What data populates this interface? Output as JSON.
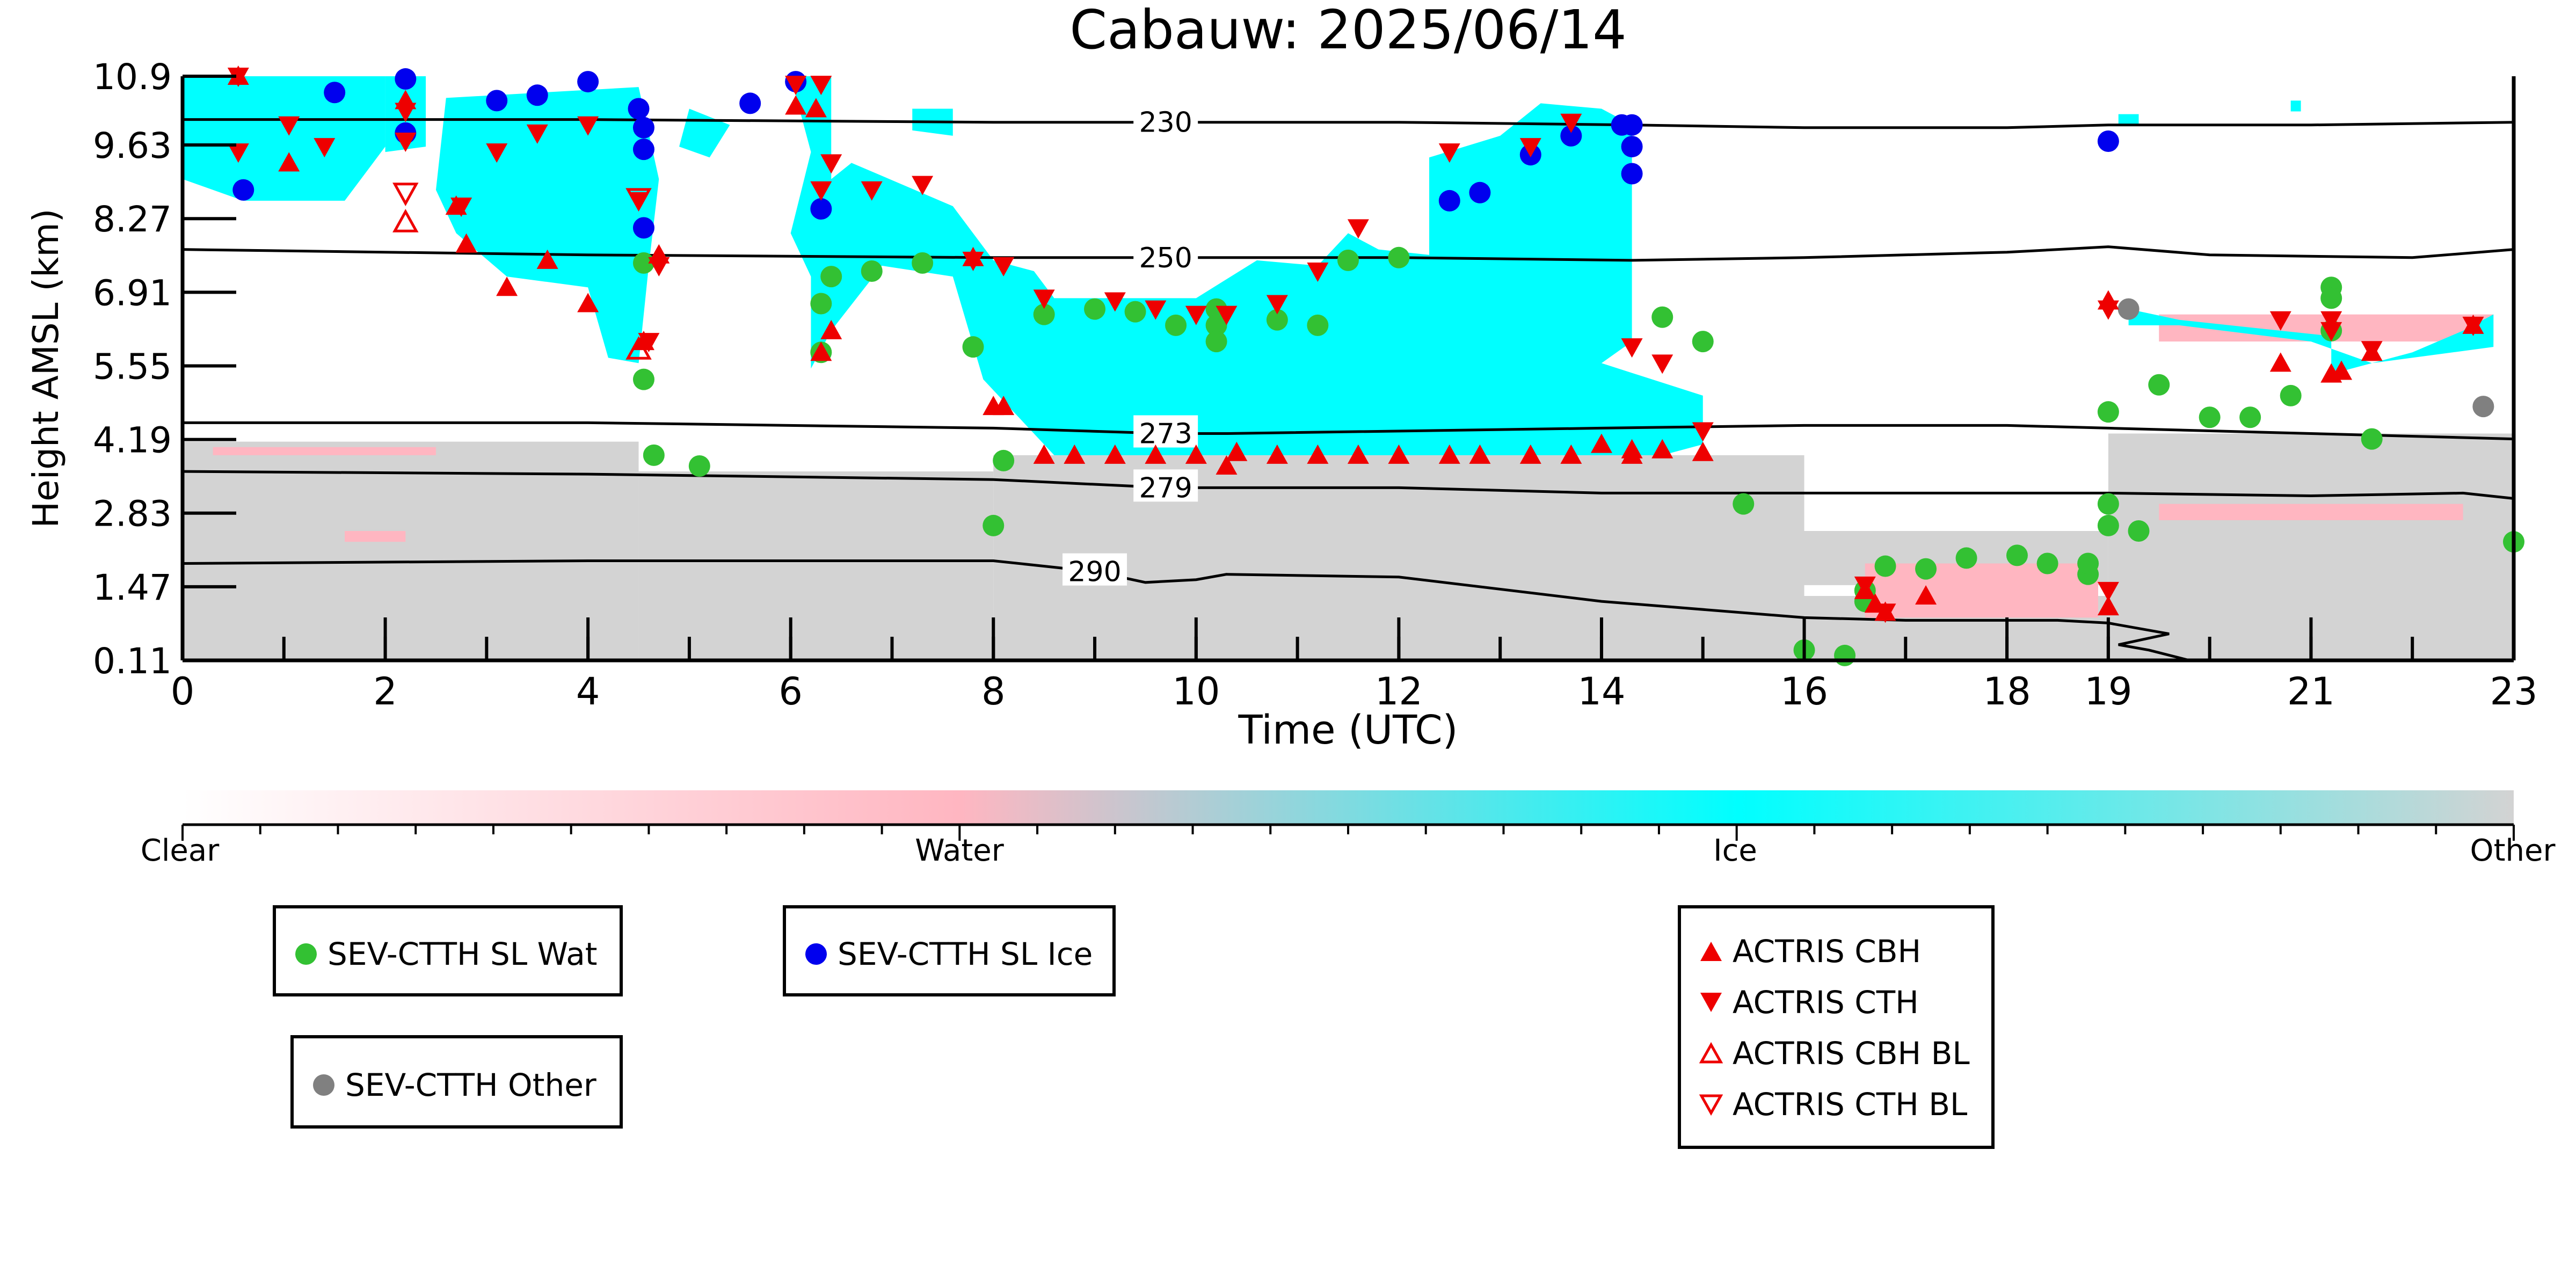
{
  "chart_data": {
    "type": "scatter",
    "title": "Cabauw: 2025/06/14",
    "xlabel": "Time (UTC)",
    "ylabel": "Height AMSL (km)",
    "xlim": [
      0,
      23
    ],
    "ylim": [
      0.11,
      10.9
    ],
    "x_ticks": [
      0,
      2,
      4,
      6,
      8,
      10,
      12,
      14,
      16,
      18,
      19,
      21,
      23
    ],
    "y_tick_labels": [
      "0.11",
      "1.47",
      "2.83",
      "4.19",
      "5.55",
      "6.91",
      "8.27",
      "9.63",
      "10.9"
    ],
    "background_colors": {
      "clear": "#ffffff",
      "water": "#ffb6c1",
      "ice": "#00ffff",
      "other": "#d3d3d3"
    },
    "colorbar": {
      "labels": [
        "Clear",
        "Water",
        "Ice",
        "Other"
      ],
      "colors": [
        "#ffffff",
        "#ffb6c1",
        "#00ffff",
        "#d3d3d3"
      ]
    },
    "isotherms": [
      {
        "label": "230",
        "label_x": 9.7,
        "points": [
          [
            0,
            10.1
          ],
          [
            4,
            10.1
          ],
          [
            8,
            10.05
          ],
          [
            12,
            10.05
          ],
          [
            14.3,
            10.0
          ],
          [
            16,
            9.95
          ],
          [
            18,
            9.95
          ],
          [
            19,
            10.0
          ],
          [
            21,
            10.0
          ],
          [
            23,
            10.05
          ]
        ]
      },
      {
        "label": "250",
        "label_x": 9.7,
        "points": [
          [
            0,
            7.7
          ],
          [
            4,
            7.6
          ],
          [
            8,
            7.55
          ],
          [
            12,
            7.55
          ],
          [
            14.3,
            7.5
          ],
          [
            16,
            7.55
          ],
          [
            18,
            7.65
          ],
          [
            19,
            7.75
          ],
          [
            20,
            7.6
          ],
          [
            22,
            7.55
          ],
          [
            23,
            7.7
          ]
        ]
      },
      {
        "label": "273",
        "label_x": 9.7,
        "points": [
          [
            0,
            4.5
          ],
          [
            4,
            4.5
          ],
          [
            8,
            4.4
          ],
          [
            9.7,
            4.3
          ],
          [
            10.3,
            4.3
          ],
          [
            14,
            4.4
          ],
          [
            16,
            4.45
          ],
          [
            18,
            4.45
          ],
          [
            19,
            4.4
          ],
          [
            21,
            4.3
          ],
          [
            23,
            4.2
          ]
        ]
      },
      {
        "label": "279",
        "label_x": 9.7,
        "points": [
          [
            0,
            3.6
          ],
          [
            4,
            3.55
          ],
          [
            8,
            3.45
          ],
          [
            9.7,
            3.3
          ],
          [
            12,
            3.3
          ],
          [
            14,
            3.2
          ],
          [
            16,
            3.2
          ],
          [
            18,
            3.2
          ],
          [
            19,
            3.2
          ],
          [
            21,
            3.15
          ],
          [
            22.5,
            3.2
          ],
          [
            23,
            3.1
          ]
        ]
      },
      {
        "label": "290",
        "label_x": 9.0,
        "points": [
          [
            0,
            1.9
          ],
          [
            4,
            1.95
          ],
          [
            8,
            1.95
          ],
          [
            9,
            1.75
          ],
          [
            9.5,
            1.55
          ],
          [
            10,
            1.6
          ],
          [
            10.3,
            1.7
          ],
          [
            12,
            1.65
          ],
          [
            14,
            1.2
          ],
          [
            16,
            0.9
          ],
          [
            17,
            0.85
          ],
          [
            18.5,
            0.85
          ],
          [
            19,
            0.8
          ],
          [
            19.6,
            0.6
          ],
          [
            19.1,
            0.4
          ],
          [
            19.4,
            0.3
          ],
          [
            19.8,
            0.11
          ]
        ]
      }
    ],
    "series": [
      {
        "name": "SEV-CTTH SL Wat",
        "marker": "circle",
        "color": "#33c133",
        "points": [
          [
            4.55,
            7.45
          ],
          [
            4.55,
            5.3
          ],
          [
            4.65,
            3.9
          ],
          [
            5.1,
            3.7
          ],
          [
            6.3,
            6.7
          ],
          [
            6.3,
            5.8
          ],
          [
            6.4,
            7.2
          ],
          [
            6.8,
            7.3
          ],
          [
            7.3,
            7.45
          ],
          [
            7.8,
            5.9
          ],
          [
            8.0,
            2.6
          ],
          [
            8.1,
            3.8
          ],
          [
            8.5,
            6.5
          ],
          [
            9.0,
            6.6
          ],
          [
            9.4,
            6.55
          ],
          [
            9.8,
            6.3
          ],
          [
            10.2,
            6.6
          ],
          [
            10.2,
            6.3
          ],
          [
            10.2,
            6.0
          ],
          [
            10.8,
            6.4
          ],
          [
            11.2,
            6.3
          ],
          [
            11.5,
            7.5
          ],
          [
            12.0,
            7.55
          ],
          [
            14.6,
            6.45
          ],
          [
            15.0,
            6.0
          ],
          [
            15.4,
            3.0
          ],
          [
            16.0,
            0.3
          ],
          [
            16.4,
            0.2
          ],
          [
            16.6,
            1.4
          ],
          [
            16.6,
            1.2
          ],
          [
            16.8,
            1.85
          ],
          [
            17.2,
            1.8
          ],
          [
            17.6,
            2.0
          ],
          [
            18.1,
            2.05
          ],
          [
            18.4,
            1.9
          ],
          [
            18.8,
            1.7
          ],
          [
            19.3,
            2.5
          ],
          [
            19.0,
            4.7
          ],
          [
            19.0,
            3.0
          ],
          [
            19.0,
            2.6
          ],
          [
            19.5,
            5.2
          ],
          [
            20.0,
            4.6
          ],
          [
            20.4,
            4.6
          ],
          [
            20.8,
            5.0
          ],
          [
            21.2,
            7.0
          ],
          [
            21.2,
            6.8
          ],
          [
            21.2,
            6.2
          ],
          [
            21.6,
            4.2
          ],
          [
            23.0,
            2.3
          ],
          [
            18.8,
            1.9
          ]
        ]
      },
      {
        "name": "SEV-CTTH SL Ice",
        "marker": "circle",
        "color": "#0000ee",
        "points": [
          [
            0.6,
            8.8
          ],
          [
            1.5,
            10.6
          ],
          [
            2.2,
            10.85
          ],
          [
            2.2,
            9.85
          ],
          [
            3.1,
            10.45
          ],
          [
            3.5,
            10.55
          ],
          [
            4.0,
            10.8
          ],
          [
            4.5,
            10.3
          ],
          [
            4.55,
            9.95
          ],
          [
            4.55,
            9.55
          ],
          [
            4.55,
            8.1
          ],
          [
            5.6,
            10.4
          ],
          [
            6.05,
            10.8
          ],
          [
            6.3,
            8.45
          ],
          [
            12.5,
            8.6
          ],
          [
            12.8,
            8.75
          ],
          [
            13.3,
            9.45
          ],
          [
            13.7,
            9.8
          ],
          [
            14.2,
            10.0
          ],
          [
            14.3,
            9.6
          ],
          [
            14.3,
            9.1
          ],
          [
            14.3,
            10.0
          ],
          [
            19.0,
            9.7
          ]
        ]
      },
      {
        "name": "SEV-CTTH Other",
        "marker": "circle",
        "color": "#808080",
        "points": [
          [
            19.2,
            6.6
          ],
          [
            22.7,
            4.8
          ]
        ]
      },
      {
        "name": "ACTRIS CBH",
        "marker": "triangle-up",
        "color": "#ee0000",
        "points": [
          [
            0.55,
            10.9
          ],
          [
            1.05,
            9.3
          ],
          [
            2.2,
            10.45
          ],
          [
            2.7,
            8.5
          ],
          [
            2.8,
            7.8
          ],
          [
            3.2,
            7.0
          ],
          [
            3.6,
            7.5
          ],
          [
            4.0,
            6.7
          ],
          [
            4.55,
            6.0
          ],
          [
            4.7,
            7.6
          ],
          [
            6.05,
            10.35
          ],
          [
            6.25,
            10.3
          ],
          [
            6.3,
            5.8
          ],
          [
            6.4,
            6.2
          ],
          [
            7.8,
            7.55
          ],
          [
            8.0,
            4.8
          ],
          [
            8.1,
            4.8
          ],
          [
            8.5,
            3.9
          ],
          [
            8.8,
            3.9
          ],
          [
            9.2,
            3.9
          ],
          [
            9.6,
            3.9
          ],
          [
            10.0,
            3.9
          ],
          [
            10.3,
            3.7
          ],
          [
            10.4,
            3.95
          ],
          [
            10.8,
            3.9
          ],
          [
            11.2,
            3.9
          ],
          [
            11.6,
            3.9
          ],
          [
            12.0,
            3.9
          ],
          [
            12.5,
            3.9
          ],
          [
            12.8,
            3.9
          ],
          [
            13.3,
            3.9
          ],
          [
            13.7,
            3.9
          ],
          [
            14.0,
            4.1
          ],
          [
            14.3,
            3.9
          ],
          [
            14.3,
            4.0
          ],
          [
            14.6,
            4.0
          ],
          [
            15.0,
            3.95
          ],
          [
            16.6,
            1.4
          ],
          [
            16.7,
            1.15
          ],
          [
            16.8,
            1.0
          ],
          [
            17.2,
            1.3
          ],
          [
            19.0,
            1.1
          ],
          [
            19.0,
            6.75
          ],
          [
            20.7,
            5.6
          ],
          [
            21.2,
            5.4
          ],
          [
            21.3,
            5.45
          ],
          [
            21.6,
            5.8
          ],
          [
            22.6,
            6.3
          ]
        ]
      },
      {
        "name": "ACTRIS CTH",
        "marker": "triangle-down",
        "color": "#ee0000",
        "points": [
          [
            0.55,
            10.9
          ],
          [
            0.55,
            9.5
          ],
          [
            1.05,
            10.0
          ],
          [
            1.4,
            9.6
          ],
          [
            2.2,
            10.25
          ],
          [
            2.2,
            9.7
          ],
          [
            2.75,
            8.5
          ],
          [
            3.1,
            9.5
          ],
          [
            3.5,
            9.85
          ],
          [
            4.0,
            10.0
          ],
          [
            4.5,
            8.6
          ],
          [
            4.6,
            6.0
          ],
          [
            4.7,
            7.4
          ],
          [
            6.05,
            10.75
          ],
          [
            6.3,
            10.75
          ],
          [
            6.3,
            8.8
          ],
          [
            6.4,
            9.3
          ],
          [
            6.8,
            8.8
          ],
          [
            7.3,
            8.9
          ],
          [
            7.8,
            7.5
          ],
          [
            8.1,
            7.4
          ],
          [
            8.5,
            6.8
          ],
          [
            9.2,
            6.75
          ],
          [
            9.6,
            6.6
          ],
          [
            10.0,
            6.5
          ],
          [
            10.3,
            6.5
          ],
          [
            10.8,
            6.7
          ],
          [
            11.2,
            7.3
          ],
          [
            11.6,
            8.1
          ],
          [
            12.5,
            9.5
          ],
          [
            13.3,
            9.6
          ],
          [
            13.7,
            10.05
          ],
          [
            14.3,
            5.9
          ],
          [
            14.6,
            5.6
          ],
          [
            15.0,
            4.35
          ],
          [
            16.6,
            1.5
          ],
          [
            19.0,
            1.4
          ],
          [
            19.0,
            6.6
          ],
          [
            20.7,
            6.4
          ],
          [
            21.2,
            6.4
          ],
          [
            21.2,
            6.2
          ],
          [
            22.6,
            6.3
          ],
          [
            21.6,
            5.85
          ],
          [
            16.8,
            1.0
          ]
        ]
      },
      {
        "name": "ACTRIS CBH BL",
        "marker": "triangle-up-open",
        "color": "#ee0000",
        "points": [
          [
            2.2,
            8.2
          ],
          [
            4.5,
            5.85
          ]
        ]
      },
      {
        "name": "ACTRIS CTH BL",
        "marker": "triangle-down-open",
        "color": "#ee0000",
        "points": [
          [
            2.2,
            8.75
          ],
          [
            4.5,
            8.65
          ]
        ]
      }
    ]
  }
}
